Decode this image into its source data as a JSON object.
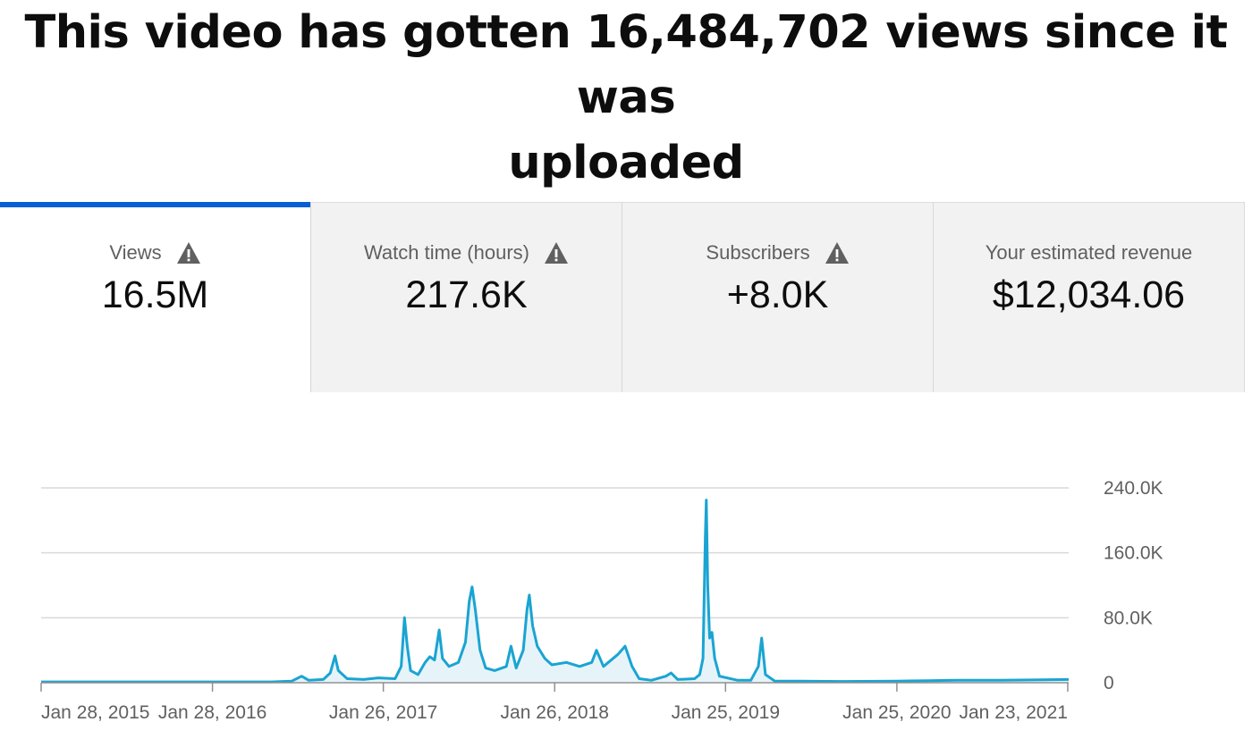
{
  "headline": {
    "line1": "This video has gotten 16,484,702 views since it was",
    "line2": "uploaded"
  },
  "metrics": [
    {
      "label": "Views",
      "value": "16.5M",
      "warning": true,
      "active": true,
      "icon": "warning-triangle-icon"
    },
    {
      "label": "Watch time (hours)",
      "value": "217.6K",
      "warning": true,
      "active": false,
      "icon": "warning-triangle-icon"
    },
    {
      "label": "Subscribers",
      "value": "+8.0K",
      "warning": true,
      "active": false,
      "icon": "warning-triangle-icon"
    },
    {
      "label": "Your estimated revenue",
      "value": "$12,034.06",
      "warning": false,
      "active": false
    }
  ],
  "colors": {
    "accent": "#065fd4",
    "series_line": "#1aa4d2",
    "series_fill": "#e6f4fa",
    "tab_inactive_bg": "#f2f2f2",
    "grid": "#d9d9d9"
  },
  "chart_data": {
    "type": "area",
    "title": "",
    "xlabel": "",
    "ylabel": "",
    "x_domain": [
      "2015-01-28",
      "2021-01-25"
    ],
    "ylim": [
      0,
      240000
    ],
    "y_ticks": [
      {
        "value": 0,
        "label": "0"
      },
      {
        "value": 80000,
        "label": "80.0K"
      },
      {
        "value": 160000,
        "label": "160.0K"
      },
      {
        "value": 240000,
        "label": "240.0K"
      }
    ],
    "x_ticks": [
      {
        "date": "2015-01-28",
        "label": "Jan 28, 2015"
      },
      {
        "date": "2016-01-28",
        "label": "Jan 28, 2016"
      },
      {
        "date": "2017-01-26",
        "label": "Jan 26, 2017"
      },
      {
        "date": "2018-01-26",
        "label": "Jan 26, 2018"
      },
      {
        "date": "2019-01-25",
        "label": "Jan 25, 2019"
      },
      {
        "date": "2020-01-25",
        "label": "Jan 25, 2020"
      },
      {
        "date": "2021-01-23",
        "label": "Jan 23, 2021"
      }
    ],
    "grid": true,
    "legend": "none",
    "series": [
      {
        "points": [
          [
            "2015-01-28",
            1000
          ],
          [
            "2015-07-01",
            1000
          ],
          [
            "2016-01-28",
            1000
          ],
          [
            "2016-06-01",
            1000
          ],
          [
            "2016-07-15",
            2000
          ],
          [
            "2016-08-05",
            8000
          ],
          [
            "2016-08-20",
            3000
          ],
          [
            "2016-09-20",
            4000
          ],
          [
            "2016-10-05",
            12000
          ],
          [
            "2016-10-15",
            33000
          ],
          [
            "2016-10-22",
            15000
          ],
          [
            "2016-11-10",
            5000
          ],
          [
            "2016-12-15",
            4000
          ],
          [
            "2017-01-15",
            6000
          ],
          [
            "2017-02-20",
            5000
          ],
          [
            "2017-03-05",
            20000
          ],
          [
            "2017-03-12",
            80000
          ],
          [
            "2017-03-18",
            45000
          ],
          [
            "2017-03-25",
            15000
          ],
          [
            "2017-04-10",
            10000
          ],
          [
            "2017-04-25",
            25000
          ],
          [
            "2017-05-05",
            32000
          ],
          [
            "2017-05-15",
            28000
          ],
          [
            "2017-05-25",
            65000
          ],
          [
            "2017-06-01",
            30000
          ],
          [
            "2017-06-15",
            20000
          ],
          [
            "2017-07-05",
            25000
          ],
          [
            "2017-07-20",
            50000
          ],
          [
            "2017-07-28",
            100000
          ],
          [
            "2017-08-03",
            118000
          ],
          [
            "2017-08-10",
            90000
          ],
          [
            "2017-08-20",
            40000
          ],
          [
            "2017-09-01",
            18000
          ],
          [
            "2017-09-20",
            15000
          ],
          [
            "2017-10-15",
            20000
          ],
          [
            "2017-10-25",
            45000
          ],
          [
            "2017-11-05",
            18000
          ],
          [
            "2017-11-20",
            40000
          ],
          [
            "2017-11-28",
            90000
          ],
          [
            "2017-12-03",
            108000
          ],
          [
            "2017-12-10",
            70000
          ],
          [
            "2017-12-20",
            45000
          ],
          [
            "2018-01-05",
            30000
          ],
          [
            "2018-01-20",
            22000
          ],
          [
            "2018-02-20",
            25000
          ],
          [
            "2018-03-20",
            20000
          ],
          [
            "2018-04-15",
            25000
          ],
          [
            "2018-04-25",
            40000
          ],
          [
            "2018-05-10",
            20000
          ],
          [
            "2018-06-10",
            35000
          ],
          [
            "2018-06-25",
            45000
          ],
          [
            "2018-07-10",
            20000
          ],
          [
            "2018-07-25",
            5000
          ],
          [
            "2018-08-20",
            3000
          ],
          [
            "2018-09-20",
            8000
          ],
          [
            "2018-10-01",
            12000
          ],
          [
            "2018-10-15",
            4000
          ],
          [
            "2018-11-20",
            5000
          ],
          [
            "2018-12-01",
            10000
          ],
          [
            "2018-12-08",
            30000
          ],
          [
            "2018-12-13",
            180000
          ],
          [
            "2018-12-15",
            225000
          ],
          [
            "2018-12-18",
            120000
          ],
          [
            "2018-12-22",
            55000
          ],
          [
            "2018-12-27",
            62000
          ],
          [
            "2019-01-02",
            30000
          ],
          [
            "2019-01-12",
            8000
          ],
          [
            "2019-02-20",
            3000
          ],
          [
            "2019-03-20",
            3000
          ],
          [
            "2019-04-05",
            20000
          ],
          [
            "2019-04-12",
            55000
          ],
          [
            "2019-04-20",
            10000
          ],
          [
            "2019-05-10",
            2000
          ],
          [
            "2019-07-01",
            2000
          ],
          [
            "2019-10-01",
            1500
          ],
          [
            "2020-01-25",
            2000
          ],
          [
            "2020-04-01",
            2500
          ],
          [
            "2020-06-01",
            3000
          ],
          [
            "2020-09-01",
            3000
          ],
          [
            "2020-12-01",
            3500
          ],
          [
            "2021-01-25",
            4000
          ]
        ]
      }
    ]
  }
}
